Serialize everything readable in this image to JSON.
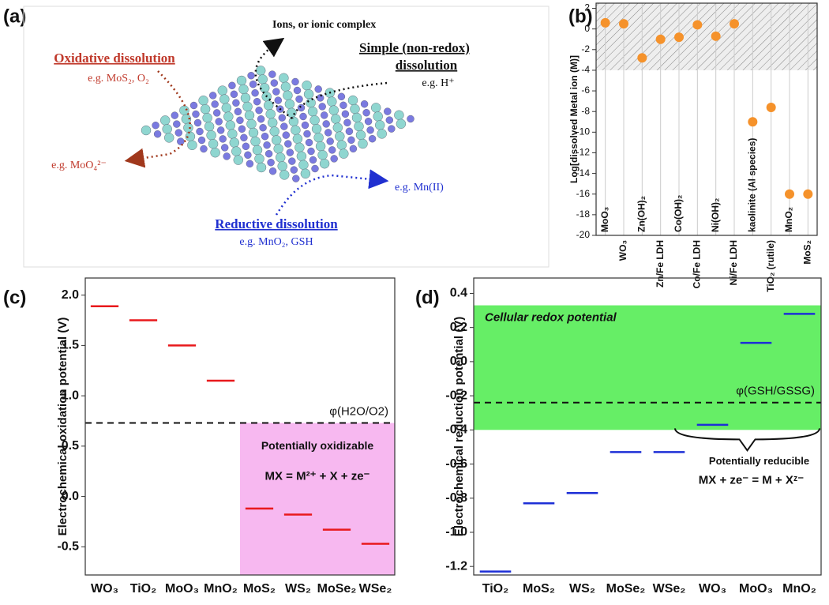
{
  "panel_a": {
    "label": "(a)",
    "ions": "Ions, or ionic complex",
    "oxidative": "Oxidative dissolution",
    "oxidative_eg": "e.g. MoS₂, O₂",
    "oxidative_product": "e.g. MoO₄²⁻",
    "simple_1": "Simple (non-redox)",
    "simple_2": "dissolution",
    "simple_eg": "e.g. H⁺",
    "reductive": "Reductive dissolution",
    "reductive_eg": "e.g. MnO₂, GSH",
    "reductive_product": "e.g. Mn(II)"
  },
  "chart_data": [
    {
      "type": "scatter",
      "label": "(b)",
      "y_label": "Log[dissolved Metal ion (M)]",
      "categories": [
        "MoO₃",
        "WO₃",
        "Zn(OH)₂",
        "Zn/Fe LDH",
        "Co(OH)₂",
        "Co/Fe LDH",
        "Ni(OH)₂",
        "Ni/Fe LDH",
        "kaolinite (Al species)",
        "TiO₂ (rutile)",
        "MnO₂",
        "MoS₂"
      ],
      "values": [
        0.6,
        0.5,
        -2.8,
        -1.0,
        -0.8,
        0.4,
        -0.7,
        0.5,
        -9,
        -7.6,
        -16,
        -16
      ],
      "color": "#f5922b",
      "ylim": [
        -20,
        2.5
      ],
      "yticks": [
        -20,
        -18,
        -16,
        -14,
        -12,
        -10,
        -8,
        -6,
        -4,
        -2,
        0,
        2
      ],
      "hatch": [
        -4,
        2.5
      ],
      "grid": true
    },
    {
      "type": "level",
      "label": "(c)",
      "y_label": "Electrochemical oxidation potential (V)",
      "categories": [
        "WO₃",
        "TiO₂",
        "MoO₃",
        "MnO₂",
        "MoS₂",
        "WS₂",
        "MoSe₂",
        "WSe₂"
      ],
      "values": [
        1.89,
        1.75,
        1.5,
        1.15,
        -0.12,
        -0.18,
        -0.33,
        -0.47
      ],
      "color": "#e8191c",
      "ylim": [
        -0.78,
        2.17
      ],
      "yticks": [
        -0.5,
        {
          "value": 0,
          "label": "0.0"
        },
        0.5,
        {
          "value": 1,
          "label": "1.0"
        },
        1.5,
        {
          "value": 2,
          "label": "2.0"
        }
      ],
      "reference": {
        "value": 0.73,
        "label": "φ(H2O/O2)"
      },
      "region": {
        "color": "#f7b8f0",
        "y": [
          -0.78,
          0.73
        ],
        "from_category": 4,
        "title": "Potentially oxidizable",
        "equation": "MX = M²⁺ + X + ze⁻"
      }
    },
    {
      "type": "level",
      "label": "(d)",
      "y_label": "Electrochemical reduction potential (V)",
      "categories": [
        "TiO₂",
        "MoS₂",
        "WS₂",
        "MoSe₂",
        "WSe₂",
        "WO₃",
        "MoO₃",
        "MnO₂"
      ],
      "values": [
        -1.23,
        -0.83,
        -0.77,
        -0.53,
        -0.53,
        -0.37,
        0.11,
        0.28
      ],
      "color": "#1d2fd6",
      "ylim": [
        -1.25,
        0.49
      ],
      "yticks": [
        -1.2,
        {
          "value": -1,
          "label": "-1.0"
        },
        -0.8,
        -0.6,
        -0.4,
        -0.2,
        {
          "value": 0,
          "label": "0.0"
        },
        0.2,
        0.4
      ],
      "reference": {
        "value": -0.24,
        "label": "φ(GSH/GSSG)"
      },
      "region": {
        "color": "#66ee66",
        "y": [
          -0.4,
          0.33
        ],
        "from_category": 0,
        "title": "Cellular redox potential"
      },
      "brace": {
        "title": "Potentially reducible",
        "equation": "MX + ze⁻ = M + Xᶻ⁻"
      }
    }
  ]
}
